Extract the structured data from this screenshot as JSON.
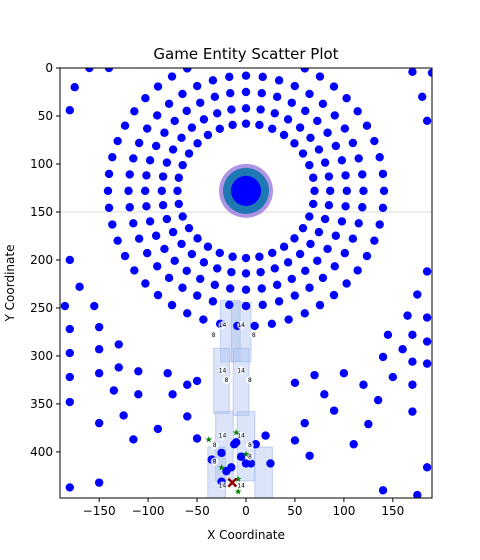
{
  "chart_data": {
    "type": "scatter",
    "title": "Game Entity Scatter Plot",
    "xlabel": "X Coordinate",
    "ylabel": "Y Coordinate",
    "xlim": [
      -190,
      190
    ],
    "ylim": [
      0,
      448
    ],
    "y_inverted": true,
    "grid": false,
    "xticks": [
      -150,
      -100,
      -50,
      0,
      50,
      100,
      150
    ],
    "yticks": [
      0,
      50,
      100,
      150,
      200,
      250,
      300,
      350,
      400
    ],
    "colors": {
      "entity": "#0000ff",
      "center_ring": "#9370db",
      "center_body": "#1f77b4",
      "center_core": "#0000ff",
      "tower": "#b0c4f0",
      "marker_label": "#000000",
      "star": "#008000",
      "cross": "#8b0000",
      "hline": "#d8d8d8"
    },
    "center_entity": {
      "x": 0,
      "y": 128
    },
    "horizontal_line": {
      "y": 150
    },
    "rings": [
      {
        "name": "ring-1",
        "cx": 0,
        "cy": 128,
        "r": 70,
        "n": 32
      },
      {
        "name": "ring-2",
        "cx": 0,
        "cy": 128,
        "r": 86,
        "n": 36
      },
      {
        "name": "ring-3",
        "cx": 0,
        "cy": 128,
        "r": 103,
        "n": 40
      },
      {
        "name": "ring-4",
        "cx": 0,
        "cy": 128,
        "r": 120,
        "n": 44
      },
      {
        "name": "ring-5",
        "cx": 0,
        "cy": 128,
        "r": 141,
        "n": 50
      }
    ],
    "scattered_points": [
      [
        -180,
        44
      ],
      [
        -160,
        0
      ],
      [
        -140,
        0
      ],
      [
        -175,
        20
      ],
      [
        -180,
        200
      ],
      [
        -185,
        248
      ],
      [
        -170,
        228
      ],
      [
        -155,
        248
      ],
      [
        -180,
        272
      ],
      [
        -150,
        270
      ],
      [
        -180,
        297
      ],
      [
        -150,
        293
      ],
      [
        -180,
        322
      ],
      [
        -150,
        318
      ],
      [
        -180,
        348
      ],
      [
        -150,
        370
      ],
      [
        -130,
        288
      ],
      [
        -130,
        312
      ],
      [
        -135,
        336
      ],
      [
        -125,
        362
      ],
      [
        -115,
        387
      ],
      [
        -110,
        340
      ],
      [
        -110,
        316
      ],
      [
        -90,
        376
      ],
      [
        -80,
        318
      ],
      [
        -75,
        340
      ],
      [
        -60,
        363
      ],
      [
        -60,
        330
      ],
      [
        -50,
        326
      ],
      [
        -50,
        386
      ],
      [
        -35,
        408
      ],
      [
        -25,
        401
      ],
      [
        -10,
        390
      ],
      [
        10,
        392
      ],
      [
        20,
        383
      ],
      [
        25,
        412
      ],
      [
        50,
        388
      ],
      [
        50,
        328
      ],
      [
        60,
        370
      ],
      [
        70,
        320
      ],
      [
        65,
        404
      ],
      [
        80,
        340
      ],
      [
        90,
        357
      ],
      [
        100,
        318
      ],
      [
        110,
        392
      ],
      [
        120,
        330
      ],
      [
        125,
        371
      ],
      [
        135,
        346
      ],
      [
        140,
        301
      ],
      [
        145,
        278
      ],
      [
        150,
        322
      ],
      [
        160,
        293
      ],
      [
        165,
        258
      ],
      [
        170,
        278
      ],
      [
        170,
        306
      ],
      [
        170,
        330
      ],
      [
        170,
        358
      ],
      [
        185,
        260
      ],
      [
        185,
        285
      ],
      [
        185,
        308
      ],
      [
        185,
        212
      ],
      [
        175,
        236
      ],
      [
        185,
        416
      ],
      [
        175,
        445
      ],
      [
        140,
        440
      ],
      [
        190,
        5
      ],
      [
        170,
        4
      ],
      [
        185,
        55
      ],
      [
        180,
        30
      ],
      [
        -150,
        432
      ],
      [
        -180,
        437
      ]
    ],
    "cluster_points": [
      [
        -25,
        431
      ],
      [
        -15,
        416
      ],
      [
        -12,
        392
      ],
      [
        -5,
        405
      ],
      [
        5,
        412
      ],
      [
        0,
        412
      ],
      [
        -20,
        420
      ]
    ],
    "stars": [
      [
        -38,
        387
      ],
      [
        -25,
        416
      ],
      [
        -8,
        441
      ],
      [
        -8,
        428
      ],
      [
        0,
        402
      ],
      [
        -10,
        380
      ]
    ],
    "cross": {
      "x": -14,
      "y": 432
    },
    "towers": [
      {
        "x": -16,
        "y_top": 242,
        "y_bottom": 306,
        "width": 20
      },
      {
        "x": -5,
        "y_top": 244,
        "y_bottom": 306,
        "width": 20
      },
      {
        "x": -25,
        "y_top": 292,
        "y_bottom": 360,
        "width": 16
      },
      {
        "x": -5,
        "y_top": 292,
        "y_bottom": 362,
        "width": 16
      },
      {
        "x": -22,
        "y_top": 358,
        "y_bottom": 430,
        "width": 18
      },
      {
        "x": 0,
        "y_top": 358,
        "y_bottom": 430,
        "width": 18
      },
      {
        "x": -30,
        "y_top": 395,
        "y_bottom": 470,
        "width": 18
      },
      {
        "x": 18,
        "y_top": 395,
        "y_bottom": 470,
        "width": 18
      }
    ],
    "unit_labels": [
      {
        "x": -24,
        "y": 268,
        "text": "14"
      },
      {
        "x": -5,
        "y": 268,
        "text": "14"
      },
      {
        "x": -33,
        "y": 278,
        "text": "8"
      },
      {
        "x": 8,
        "y": 278,
        "text": "8"
      },
      {
        "x": -24,
        "y": 315,
        "text": "14"
      },
      {
        "x": -5,
        "y": 315,
        "text": "14"
      },
      {
        "x": -20,
        "y": 325,
        "text": "8"
      },
      {
        "x": 4,
        "y": 325,
        "text": "8"
      },
      {
        "x": -24,
        "y": 383,
        "text": "14"
      },
      {
        "x": -5,
        "y": 383,
        "text": "14"
      },
      {
        "x": -32,
        "y": 393,
        "text": "8"
      },
      {
        "x": 4,
        "y": 393,
        "text": "8"
      },
      {
        "x": -24,
        "y": 435,
        "text": "14"
      },
      {
        "x": -5,
        "y": 435,
        "text": "14"
      },
      {
        "x": -32,
        "y": 410,
        "text": "8"
      },
      {
        "x": 4,
        "y": 405,
        "text": "8"
      }
    ]
  }
}
